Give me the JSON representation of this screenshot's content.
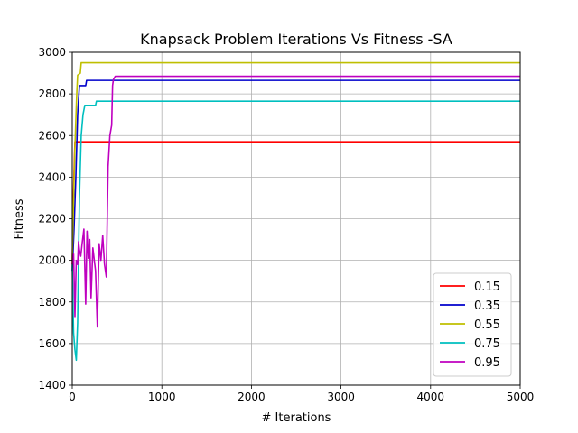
{
  "chart_data": {
    "type": "line",
    "title": "Knapsack Problem Iterations Vs Fitness -SA",
    "xlabel": "# Iterations",
    "ylabel": "Fitness",
    "xlim": [
      0,
      5000
    ],
    "ylim": [
      1400,
      3000
    ],
    "xticks": [
      0,
      1000,
      2000,
      3000,
      4000,
      5000
    ],
    "yticks": [
      1400,
      1600,
      1800,
      2000,
      2200,
      2400,
      2600,
      2800,
      3000
    ],
    "grid": true,
    "legend_position": "lower-right",
    "series": [
      {
        "name": "0.15",
        "color": "#ff0000",
        "points": [
          [
            0,
            1980
          ],
          [
            10,
            2250
          ],
          [
            20,
            2430
          ],
          [
            30,
            2570
          ],
          [
            5000,
            2570
          ]
        ]
      },
      {
        "name": "0.35",
        "color": "#0000cc",
        "points": [
          [
            0,
            1950
          ],
          [
            20,
            2150
          ],
          [
            40,
            2400
          ],
          [
            60,
            2700
          ],
          [
            80,
            2840
          ],
          [
            150,
            2840
          ],
          [
            160,
            2865
          ],
          [
            5000,
            2865
          ]
        ]
      },
      {
        "name": "0.55",
        "color": "#bfbf00",
        "points": [
          [
            0,
            2000
          ],
          [
            15,
            2300
          ],
          [
            30,
            2550
          ],
          [
            50,
            2800
          ],
          [
            60,
            2890
          ],
          [
            90,
            2900
          ],
          [
            100,
            2950
          ],
          [
            5000,
            2950
          ]
        ]
      },
      {
        "name": "0.75",
        "color": "#00bfbf",
        "points": [
          [
            0,
            1980
          ],
          [
            15,
            1650
          ],
          [
            30,
            1570
          ],
          [
            45,
            1520
          ],
          [
            60,
            1700
          ],
          [
            70,
            2000
          ],
          [
            80,
            2300
          ],
          [
            100,
            2600
          ],
          [
            120,
            2700
          ],
          [
            140,
            2745
          ],
          [
            260,
            2745
          ],
          [
            270,
            2765
          ],
          [
            5000,
            2765
          ]
        ]
      },
      {
        "name": "0.95",
        "color": "#bf00bf",
        "points": [
          [
            0,
            1980
          ],
          [
            15,
            2030
          ],
          [
            30,
            1730
          ],
          [
            45,
            2000
          ],
          [
            60,
            1980
          ],
          [
            70,
            2090
          ],
          [
            80,
            2050
          ],
          [
            95,
            2020
          ],
          [
            110,
            2080
          ],
          [
            130,
            2150
          ],
          [
            150,
            1790
          ],
          [
            165,
            2140
          ],
          [
            180,
            2010
          ],
          [
            195,
            2100
          ],
          [
            210,
            1820
          ],
          [
            230,
            2060
          ],
          [
            260,
            1950
          ],
          [
            280,
            1680
          ],
          [
            300,
            2080
          ],
          [
            320,
            2000
          ],
          [
            340,
            2120
          ],
          [
            360,
            1980
          ],
          [
            380,
            1920
          ],
          [
            400,
            2450
          ],
          [
            420,
            2600
          ],
          [
            440,
            2650
          ],
          [
            450,
            2840
          ],
          [
            460,
            2870
          ],
          [
            480,
            2885
          ],
          [
            5000,
            2885
          ]
        ]
      }
    ]
  }
}
